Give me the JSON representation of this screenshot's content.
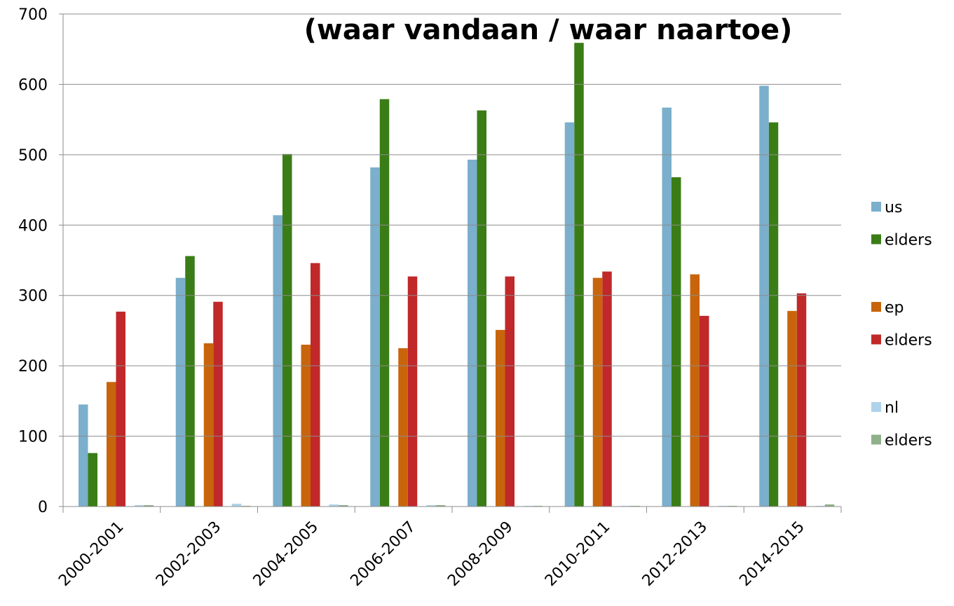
{
  "chart_data": {
    "type": "bar",
    "title": "(waar vandaan / waar naartoe)",
    "categories": [
      "2000-2001",
      "2002-2003",
      "2004-2005",
      "2006-2007",
      "2008-2009",
      "2010-2011",
      "2012-2013",
      "2014-2015"
    ],
    "series": [
      {
        "name": "us",
        "color": "#7bafcc",
        "values": [
          145,
          325,
          414,
          482,
          493,
          546,
          567,
          598
        ]
      },
      {
        "name": "elders",
        "color": "#3a7d16",
        "values": [
          76,
          356,
          501,
          579,
          563,
          659,
          468,
          546
        ]
      },
      {
        "name": "ep",
        "color": "#c8650c",
        "values": [
          177,
          232,
          230,
          225,
          251,
          325,
          330,
          278
        ]
      },
      {
        "name": "elders",
        "color": "#c0282a",
        "values": [
          277,
          291,
          346,
          327,
          327,
          334,
          271,
          303
        ]
      },
      {
        "name": "nl",
        "color": "#aed3ea",
        "values": [
          2,
          4,
          3,
          2,
          1,
          1,
          1,
          1
        ]
      },
      {
        "name": "elders",
        "color": "#8fb08a",
        "values": [
          2,
          1,
          2,
          2,
          1,
          1,
          1,
          3
        ]
      }
    ],
    "ylim": [
      0,
      700
    ],
    "yticks": [
      0,
      100,
      200,
      300,
      400,
      500,
      600,
      700
    ],
    "grid": true,
    "legend": "right"
  }
}
